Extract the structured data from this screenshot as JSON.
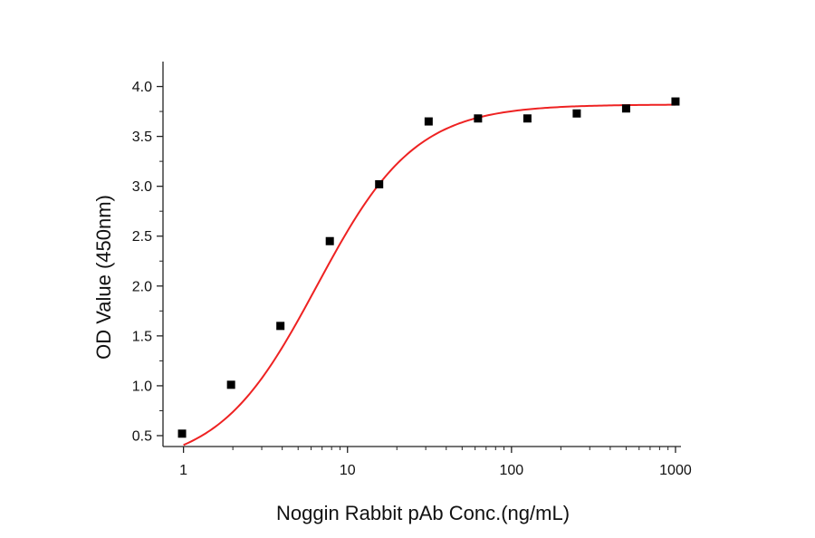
{
  "colors": {
    "axis": "#222222",
    "curve": "#ee2222",
    "point": "#000000"
  },
  "chart_data": {
    "type": "scatter",
    "title": "",
    "xlabel": "Noggin Rabbit pAb Conc.(ng/mL)",
    "ylabel": "OD Value (450nm)",
    "x_scale": "log",
    "xlim": [
      0.75,
      1080
    ],
    "ylim": [
      0.4,
      4.25
    ],
    "x_ticks": [
      1,
      10,
      100,
      1000
    ],
    "x_tick_labels": [
      "1",
      "10",
      "100",
      "1000"
    ],
    "y_ticks": [
      0.5,
      1.0,
      1.5,
      2.0,
      2.5,
      3.0,
      3.5,
      4.0
    ],
    "y_tick_labels": [
      "0.5",
      "1.0",
      "1.5",
      "2.0",
      "2.5",
      "3.0",
      "3.5",
      "4.0"
    ],
    "grid": false,
    "legend": "none",
    "series": [
      {
        "marker": "square",
        "x": [
          0.98,
          1.95,
          3.9,
          7.8,
          15.6,
          31.25,
          62.5,
          125,
          250,
          500,
          1000
        ],
        "y": [
          0.52,
          1.01,
          1.6,
          2.45,
          3.02,
          3.65,
          3.68,
          3.68,
          3.73,
          3.78,
          3.85
        ]
      }
    ],
    "fit_curve": {
      "model": "4PL",
      "bottom": 0.18,
      "top": 3.82,
      "ec50": 6.5,
      "hill": 1.45,
      "x_range": [
        1,
        1000
      ]
    }
  }
}
